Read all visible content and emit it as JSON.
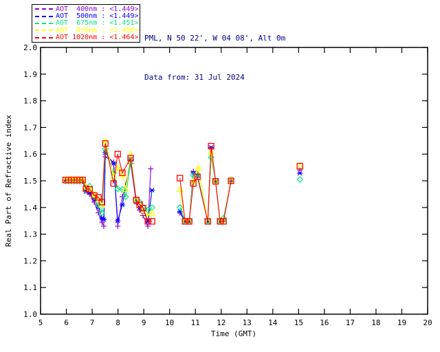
{
  "header": {
    "line1": "PML, N 50 22', W 04 08', Alt 0m",
    "line2": "Data from: 31 Jul 2024",
    "color": "#00008B"
  },
  "legend": {
    "items": [
      {
        "label": "AOT  400nm : <1.449>",
        "wavelength_nm": 400,
        "value": "<1.449>",
        "color": "#9400D3",
        "marker": "plus"
      },
      {
        "label": "AOT  500nm : <1.449>",
        "wavelength_nm": 500,
        "value": "<1.449>",
        "color": "#0000FF",
        "marker": "asterisk"
      },
      {
        "label": "AOT  675nm : <1.451>",
        "wavelength_nm": 675,
        "value": "<1.451>",
        "color": "#00E67E",
        "marker": "diamond"
      },
      {
        "label": "AOT  870nm : <1.458>",
        "wavelength_nm": 870,
        "value": "<1.458>",
        "color": "#FFFF00",
        "marker": "triangle"
      },
      {
        "label": "AOT 1020nm : <1.464>",
        "wavelength_nm": 1020,
        "value": "<1.464>",
        "color": "#FF0000",
        "marker": "square"
      }
    ]
  },
  "chart_data": {
    "type": "line",
    "title": "",
    "xlabel": "Time (GMT)",
    "ylabel": "Real Part of Refractive index",
    "xlim": [
      5,
      20
    ],
    "ylim": [
      1.0,
      2.0
    ],
    "xticks": [
      5,
      6,
      7,
      8,
      9,
      10,
      11,
      12,
      13,
      14,
      15,
      16,
      17,
      18,
      19,
      20
    ],
    "yticks": [
      1.0,
      1.1,
      1.2,
      1.3,
      1.4,
      1.5,
      1.6,
      1.7,
      1.8,
      1.9,
      2.0
    ],
    "grid": false,
    "legend_position": "top-left-outside",
    "gap_threshold_hours": 0.6,
    "series": [
      {
        "name": "AOT 400nm",
        "color": "#9400D3",
        "marker": "plus",
        "points": [
          [
            5.97,
            1.497
          ],
          [
            6.08,
            1.497
          ],
          [
            6.19,
            1.497
          ],
          [
            6.3,
            1.497
          ],
          [
            6.41,
            1.497
          ],
          [
            6.52,
            1.497
          ],
          [
            6.63,
            1.497
          ],
          [
            6.76,
            1.462
          ],
          [
            6.9,
            1.45
          ],
          [
            7.08,
            1.42
          ],
          [
            7.24,
            1.38
          ],
          [
            7.38,
            1.345
          ],
          [
            7.45,
            1.33
          ],
          [
            7.51,
            1.59
          ],
          [
            7.83,
            1.57
          ],
          [
            7.99,
            1.33
          ],
          [
            8.17,
            1.44
          ],
          [
            8.49,
            1.565
          ],
          [
            8.71,
            1.42
          ],
          [
            8.84,
            1.39
          ],
          [
            8.97,
            1.37
          ],
          [
            9.16,
            1.33
          ],
          [
            9.27,
            1.545
          ],
          [
            10.4,
            1.38
          ],
          [
            10.6,
            1.348
          ],
          [
            10.76,
            1.348
          ],
          [
            10.92,
            1.535
          ],
          [
            11.08,
            1.52
          ],
          [
            11.48,
            1.348
          ],
          [
            11.61,
            1.62
          ],
          [
            11.78,
            1.498
          ],
          [
            11.96,
            1.348
          ],
          [
            12.09,
            1.348
          ],
          [
            12.38,
            1.498
          ],
          [
            15.05,
            1.54
          ]
        ]
      },
      {
        "name": "AOT 500nm",
        "color": "#0000FF",
        "marker": "asterisk",
        "points": [
          [
            5.97,
            1.499
          ],
          [
            6.08,
            1.499
          ],
          [
            6.19,
            1.499
          ],
          [
            6.3,
            1.499
          ],
          [
            6.41,
            1.499
          ],
          [
            6.52,
            1.499
          ],
          [
            6.63,
            1.499
          ],
          [
            6.76,
            1.46
          ],
          [
            6.9,
            1.455
          ],
          [
            7.08,
            1.43
          ],
          [
            7.24,
            1.4
          ],
          [
            7.38,
            1.36
          ],
          [
            7.45,
            1.355
          ],
          [
            7.51,
            1.605
          ],
          [
            7.83,
            1.565
          ],
          [
            7.99,
            1.35
          ],
          [
            8.17,
            1.41
          ],
          [
            8.49,
            1.58
          ],
          [
            8.71,
            1.42
          ],
          [
            8.84,
            1.4
          ],
          [
            8.97,
            1.39
          ],
          [
            9.16,
            1.348
          ],
          [
            9.32,
            1.465
          ],
          [
            10.4,
            1.385
          ],
          [
            10.6,
            1.348
          ],
          [
            10.76,
            1.348
          ],
          [
            10.92,
            1.53
          ],
          [
            11.08,
            1.52
          ],
          [
            11.48,
            1.348
          ],
          [
            11.61,
            1.625
          ],
          [
            11.78,
            1.5
          ],
          [
            11.96,
            1.348
          ],
          [
            12.09,
            1.352
          ],
          [
            12.38,
            1.5
          ],
          [
            15.05,
            1.528
          ]
        ]
      },
      {
        "name": "AOT 675nm",
        "color": "#00E67E",
        "marker": "diamond",
        "points": [
          [
            5.97,
            1.5
          ],
          [
            6.08,
            1.5
          ],
          [
            6.19,
            1.5
          ],
          [
            6.3,
            1.5
          ],
          [
            6.41,
            1.5
          ],
          [
            6.52,
            1.5
          ],
          [
            6.63,
            1.5
          ],
          [
            6.76,
            1.465
          ],
          [
            6.9,
            1.48
          ],
          [
            7.08,
            1.44
          ],
          [
            7.24,
            1.41
          ],
          [
            7.38,
            1.38
          ],
          [
            7.51,
            1.62
          ],
          [
            7.83,
            1.53
          ],
          [
            7.99,
            1.47
          ],
          [
            8.17,
            1.468
          ],
          [
            8.3,
            1.44
          ],
          [
            8.49,
            1.575
          ],
          [
            8.71,
            1.43
          ],
          [
            8.84,
            1.42
          ],
          [
            8.97,
            1.4
          ],
          [
            9.16,
            1.39
          ],
          [
            9.32,
            1.4
          ],
          [
            10.4,
            1.4
          ],
          [
            10.6,
            1.35
          ],
          [
            10.76,
            1.35
          ],
          [
            10.92,
            1.52
          ],
          [
            11.08,
            1.525
          ],
          [
            11.48,
            1.35
          ],
          [
            11.61,
            1.588
          ],
          [
            11.78,
            1.5
          ],
          [
            11.96,
            1.35
          ],
          [
            12.09,
            1.36
          ],
          [
            12.38,
            1.5
          ],
          [
            15.05,
            1.505
          ]
        ]
      },
      {
        "name": "AOT 870nm",
        "color": "#FFFF00",
        "marker": "triangle",
        "points": [
          [
            5.97,
            1.506
          ],
          [
            6.08,
            1.506
          ],
          [
            6.19,
            1.506
          ],
          [
            6.3,
            1.506
          ],
          [
            6.41,
            1.506
          ],
          [
            6.52,
            1.506
          ],
          [
            6.63,
            1.506
          ],
          [
            6.76,
            1.48
          ],
          [
            6.9,
            1.47
          ],
          [
            7.08,
            1.45
          ],
          [
            7.24,
            1.43
          ],
          [
            7.38,
            1.41
          ],
          [
            7.51,
            1.65
          ],
          [
            7.83,
            1.52
          ],
          [
            7.99,
            1.55
          ],
          [
            8.17,
            1.525
          ],
          [
            8.3,
            1.47
          ],
          [
            8.49,
            1.6
          ],
          [
            8.71,
            1.43
          ],
          [
            8.84,
            1.41
          ],
          [
            8.97,
            1.385
          ],
          [
            9.16,
            1.37
          ],
          [
            9.32,
            1.38
          ],
          [
            10.4,
            1.47
          ],
          [
            10.6,
            1.35
          ],
          [
            10.76,
            1.35
          ],
          [
            10.92,
            1.5
          ],
          [
            11.11,
            1.55
          ],
          [
            11.48,
            1.35
          ],
          [
            11.61,
            1.61
          ],
          [
            11.78,
            1.5
          ],
          [
            11.96,
            1.35
          ],
          [
            12.09,
            1.35
          ],
          [
            12.38,
            1.505
          ],
          [
            15.05,
            1.556
          ]
        ]
      },
      {
        "name": "AOT 1020nm",
        "color": "#FF0000",
        "marker": "square",
        "points": [
          [
            5.97,
            1.503
          ],
          [
            6.08,
            1.503
          ],
          [
            6.19,
            1.503
          ],
          [
            6.3,
            1.503
          ],
          [
            6.41,
            1.503
          ],
          [
            6.52,
            1.503
          ],
          [
            6.63,
            1.503
          ],
          [
            6.76,
            1.47
          ],
          [
            6.9,
            1.468
          ],
          [
            7.08,
            1.445
          ],
          [
            7.24,
            1.438
          ],
          [
            7.38,
            1.42
          ],
          [
            7.51,
            1.64
          ],
          [
            7.83,
            1.49
          ],
          [
            7.99,
            1.6
          ],
          [
            8.17,
            1.53
          ],
          [
            8.49,
            1.585
          ],
          [
            8.71,
            1.428
          ],
          [
            8.84,
            1.41
          ],
          [
            8.97,
            1.398
          ],
          [
            9.16,
            1.348
          ],
          [
            9.32,
            1.348
          ],
          [
            10.4,
            1.51
          ],
          [
            10.6,
            1.348
          ],
          [
            10.76,
            1.348
          ],
          [
            10.92,
            1.49
          ],
          [
            11.08,
            1.515
          ],
          [
            11.48,
            1.348
          ],
          [
            11.61,
            1.63
          ],
          [
            11.78,
            1.498
          ],
          [
            11.96,
            1.348
          ],
          [
            12.09,
            1.348
          ],
          [
            12.38,
            1.5
          ],
          [
            15.05,
            1.555
          ]
        ]
      }
    ]
  }
}
